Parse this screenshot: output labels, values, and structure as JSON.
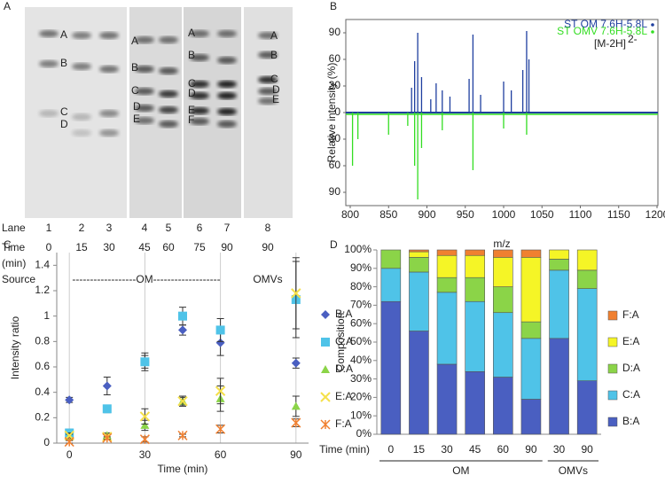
{
  "panel_a": {
    "label": "A",
    "gel_labels": [
      "A",
      "B",
      "C",
      "D",
      "A",
      "B",
      "C",
      "D",
      "E",
      "A",
      "B",
      "C",
      "D",
      "E",
      "F",
      "A",
      "B",
      "C",
      "D",
      "E"
    ],
    "lane_row": {
      "title": "Lane",
      "values": [
        "1",
        "2",
        "3",
        "4",
        "5",
        "6",
        "7",
        "8"
      ]
    },
    "time_row": {
      "title": "Time",
      "unit": "(min)",
      "values": [
        "0",
        "15",
        "30",
        "45",
        "60",
        "75",
        "90",
        "90"
      ]
    },
    "source_row": {
      "title": "Source",
      "groups": [
        "------------------OM-------------------",
        "OMVs"
      ]
    }
  },
  "chart_data": [
    {
      "type": "stem",
      "label": "B",
      "xlabel": "m/z",
      "ylabel": "Relative intensity (%)",
      "annotation": {
        "text": "[M-2H]",
        "sup": "2-"
      },
      "xlim": [
        800,
        1200
      ],
      "xticks": [
        800,
        850,
        900,
        950,
        1000,
        1050,
        1100,
        1150,
        1200
      ],
      "ylim": [
        -105,
        105
      ],
      "yticks": [
        {
          "value": -90,
          "label": "90"
        },
        {
          "value": -60,
          "label": "60"
        },
        {
          "value": -30,
          "label": "30"
        },
        0,
        30,
        60,
        90
      ],
      "series": [
        {
          "name": "ST OM 7.6H-5.8L",
          "color": "#1f3f9f",
          "x": [
            880,
            884,
            888,
            893,
            905,
            912,
            920,
            930,
            955,
            960,
            970,
            1000,
            1010,
            1025,
            1030,
            1033
          ],
          "values": [
            28,
            58,
            90,
            40,
            15,
            33,
            25,
            18,
            38,
            88,
            20,
            35,
            25,
            48,
            92,
            60
          ]
        },
        {
          "name": "ST OMV 7.6H-5.8L",
          "color": "#33dd22",
          "x": [
            803,
            810,
            850,
            875,
            884,
            888,
            893,
            920,
            960,
            1000,
            1030
          ],
          "values": [
            -60,
            -30,
            -25,
            -15,
            -60,
            -98,
            -40,
            -20,
            -65,
            -18,
            -25
          ]
        }
      ]
    },
    {
      "type": "scatter",
      "label": "C",
      "xlabel": "Time (min)",
      "ylabel": "Intensity ratio",
      "x": [
        0,
        15,
        30,
        45,
        60,
        90
      ],
      "xlim": [
        -5,
        95
      ],
      "xticks": [
        0,
        30,
        60,
        90
      ],
      "ylim": [
        0,
        1.5
      ],
      "yticks": [
        0,
        0.2,
        0.4,
        0.6,
        0.8,
        1,
        1.2,
        1.4
      ],
      "grid": true,
      "series": [
        {
          "name": "B:A",
          "color": "#4a5fc1",
          "marker": "diamond",
          "values": [
            0.34,
            0.45,
            0.64,
            0.89,
            0.79,
            0.63
          ],
          "errors": [
            0.02,
            0.07,
            0.05,
            0.04,
            0.1,
            0.04
          ]
        },
        {
          "name": "C:A",
          "color": "#4fc3e8",
          "marker": "square",
          "values": [
            0.08,
            0.27,
            0.64,
            1.0,
            0.89,
            1.13
          ],
          "errors": [
            0.03,
            0.03,
            0.07,
            0.07,
            0.09,
            0.3
          ]
        },
        {
          "name": "D:A",
          "color": "#8bd448",
          "marker": "triangle",
          "values": [
            0.05,
            0.06,
            0.14,
            0.33,
            0.35,
            0.29
          ],
          "errors": [
            0.02,
            0.02,
            0.04,
            0.03,
            0.1,
            0.08
          ]
        },
        {
          "name": "E:A",
          "color": "#f5e04a",
          "marker": "x",
          "values": [
            0.06,
            0.05,
            0.21,
            0.33,
            0.41,
            1.18
          ],
          "errors": [
            0.02,
            0.02,
            0.06,
            0.04,
            0.1,
            0.28
          ]
        },
        {
          "name": "F:A",
          "color": "#f08030",
          "marker": "asterisk",
          "values": [
            0.01,
            0.04,
            0.03,
            0.06,
            0.11,
            0.16
          ],
          "errors": [
            0.01,
            0.01,
            0.02,
            0.01,
            0.03,
            0.03
          ]
        }
      ]
    },
    {
      "type": "stacked_bar",
      "label": "D",
      "ylabel": "Composition",
      "xlabel": "Time (min)",
      "categories": [
        "0",
        "15",
        "30",
        "45",
        "60",
        "90",
        "30",
        "90"
      ],
      "groups": [
        {
          "name": "OM",
          "count": 6
        },
        {
          "name": "OMVs",
          "count": 2
        }
      ],
      "ylim": [
        0,
        100
      ],
      "yticks": [
        {
          "value": 0,
          "label": "0%"
        },
        {
          "value": 10,
          "label": "10%"
        },
        {
          "value": 20,
          "label": "20%"
        },
        {
          "value": 30,
          "label": "30%"
        },
        {
          "value": 40,
          "label": "40%"
        },
        {
          "value": 50,
          "label": "50%"
        },
        {
          "value": 60,
          "label": "60%"
        },
        {
          "value": 70,
          "label": "70%"
        },
        {
          "value": 80,
          "label": "80%"
        },
        {
          "value": 90,
          "label": "90%"
        },
        {
          "value": 100,
          "label": "100%"
        }
      ],
      "series": [
        {
          "name": "B:A",
          "color": "#4a5fc1",
          "values": [
            72,
            56,
            38,
            34,
            31,
            19,
            52,
            29
          ]
        },
        {
          "name": "C:A",
          "color": "#4fc3e8",
          "values": [
            18,
            32,
            39,
            38,
            35,
            33,
            37,
            50
          ]
        },
        {
          "name": "D:A",
          "color": "#8bd448",
          "values": [
            10,
            8,
            8,
            13,
            14,
            9,
            6,
            10
          ]
        },
        {
          "name": "E:A",
          "color": "#f5f526",
          "values": [
            0,
            3,
            12,
            12,
            16,
            35,
            5,
            11
          ]
        },
        {
          "name": "F:A",
          "color": "#f08030",
          "values": [
            0,
            1,
            3,
            3,
            4,
            4,
            0,
            0
          ]
        }
      ]
    }
  ]
}
